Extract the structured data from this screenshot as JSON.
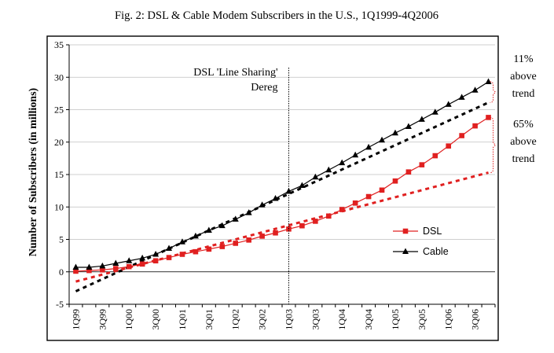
{
  "chart_data": {
    "type": "line",
    "title": "Fig. 2: DSL & Cable Modem Subscribers in the U.S., 1Q1999-4Q2006",
    "ylabel": "Number of Subscribers (in millions)",
    "xlabel": "",
    "ylim": [
      -5,
      35
    ],
    "yticks": [
      "-5",
      "0",
      "5",
      "10",
      "15",
      "20",
      "25",
      "30",
      "35"
    ],
    "grid": true,
    "legend_position": "lower-right",
    "categories": [
      "1Q99",
      "2Q99",
      "3Q99",
      "4Q99",
      "1Q00",
      "2Q00",
      "3Q00",
      "4Q00",
      "1Q01",
      "2Q01",
      "3Q01",
      "4Q01",
      "1Q02",
      "2Q02",
      "3Q02",
      "4Q02",
      "1Q03",
      "2Q03",
      "3Q03",
      "4Q03",
      "1Q04",
      "2Q04",
      "3Q04",
      "4Q04",
      "1Q05",
      "2Q05",
      "3Q05",
      "4Q05",
      "1Q06",
      "2Q06",
      "3Q06",
      "4Q06"
    ],
    "x_tick_labels": [
      "1Q99",
      "3Q99",
      "1Q00",
      "3Q00",
      "1Q01",
      "3Q01",
      "1Q02",
      "3Q02",
      "1Q03",
      "3Q03",
      "1Q04",
      "3Q04",
      "1Q05",
      "3Q05",
      "1Q06",
      "3Q06"
    ],
    "series": [
      {
        "name": "DSL",
        "color": "#e02020",
        "marker": "square",
        "values": [
          0.1,
          0.2,
          0.3,
          0.5,
          0.8,
          1.2,
          1.7,
          2.2,
          2.7,
          3.1,
          3.5,
          3.9,
          4.4,
          4.9,
          5.5,
          6.0,
          6.6,
          7.1,
          7.8,
          8.6,
          9.6,
          10.6,
          11.6,
          12.6,
          14.0,
          15.4,
          16.5,
          17.9,
          19.4,
          21.0,
          22.5,
          23.8
        ]
      },
      {
        "name": "Cable",
        "color": "#000000",
        "marker": "triangle",
        "values": [
          0.7,
          0.7,
          0.9,
          1.3,
          1.7,
          2.1,
          2.7,
          3.6,
          4.6,
          5.5,
          6.4,
          7.1,
          8.1,
          9.1,
          10.3,
          11.3,
          12.4,
          13.3,
          14.6,
          15.7,
          16.8,
          18.0,
          19.2,
          20.3,
          21.4,
          22.4,
          23.5,
          24.6,
          25.8,
          26.9,
          28.0,
          29.3
        ]
      }
    ],
    "trend_lines": [
      {
        "color": "#000000",
        "from_index": 0,
        "to_index": 31,
        "y_start": -3.0,
        "y_end": 26.1
      },
      {
        "color": "#e02020",
        "from_index": 0,
        "to_index": 31,
        "y_start": -1.5,
        "y_end": 15.3
      }
    ],
    "vertical_marker": {
      "category": "1Q03",
      "label_lines": [
        "DSL 'Line Sharing'",
        "Dereg"
      ]
    },
    "annotations": [
      {
        "lines": [
          "11%",
          "above",
          "trend"
        ],
        "series": "Cable"
      },
      {
        "lines": [
          "65%",
          "above",
          "trend"
        ],
        "series": "DSL"
      }
    ]
  }
}
